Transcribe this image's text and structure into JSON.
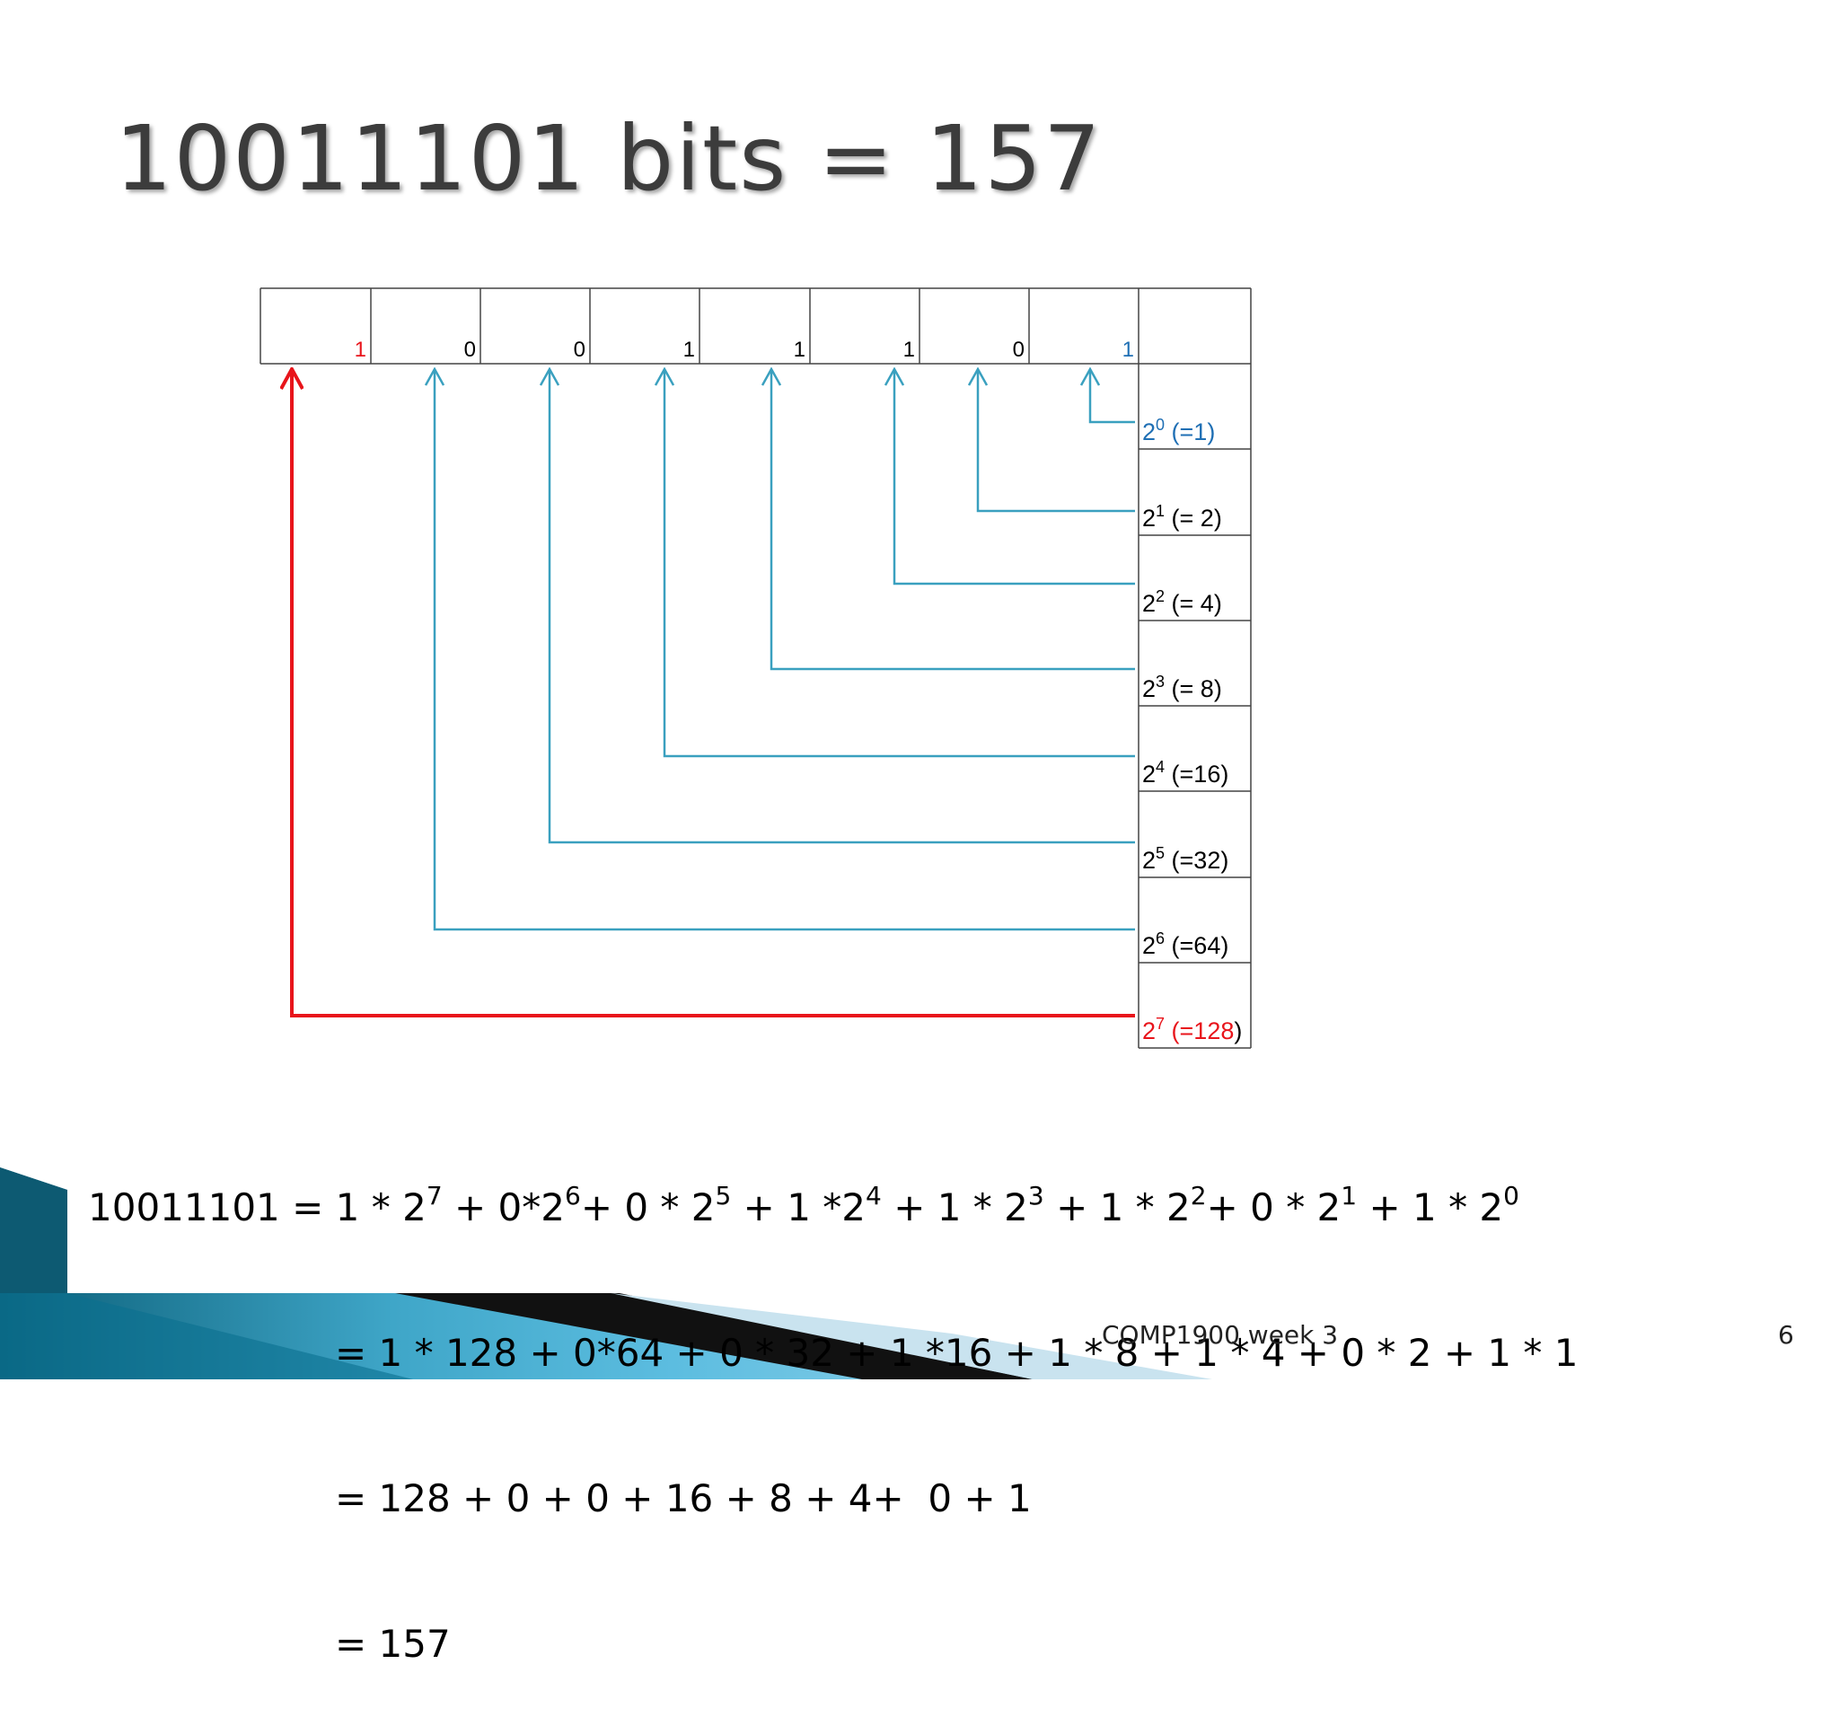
{
  "slide": {
    "title": "10011101 bits = 157",
    "footer": "COMP1900 week 3",
    "page_number": "6"
  },
  "bits": [
    {
      "value": "1",
      "color": "#e8141b"
    },
    {
      "value": "0",
      "color": "#000000"
    },
    {
      "value": "0",
      "color": "#000000"
    },
    {
      "value": "1",
      "color": "#000000"
    },
    {
      "value": "1",
      "color": "#000000"
    },
    {
      "value": "1",
      "color": "#000000"
    },
    {
      "value": "0",
      "color": "#000000"
    },
    {
      "value": "1",
      "color": "#1f6fb4"
    }
  ],
  "powers": [
    {
      "base": "2",
      "exp": "0",
      "text": " (=1)",
      "color": "#1f6fb4",
      "paren_color": "#1f6fb4"
    },
    {
      "base": "2",
      "exp": "1",
      "text": " (= 2)",
      "color": "#000000",
      "paren_color": "#000000"
    },
    {
      "base": "2",
      "exp": "2",
      "text": " (= 4)",
      "color": "#000000",
      "paren_color": "#000000"
    },
    {
      "base": "2",
      "exp": "3",
      "text": " (= 8)",
      "color": "#000000",
      "paren_color": "#000000"
    },
    {
      "base": "2",
      "exp": "4",
      "text": " (=16)",
      "color": "#000000",
      "paren_color": "#000000"
    },
    {
      "base": "2",
      "exp": "5",
      "text": " (=32)",
      "color": "#000000",
      "paren_color": "#000000"
    },
    {
      "base": "2",
      "exp": "6",
      "text": " (=64)",
      "color": "#000000",
      "paren_color": "#000000"
    },
    {
      "base": "2",
      "exp": "7",
      "text": " (=128",
      "close": ")",
      "color": "#e8141b",
      "paren_color": "#000000"
    }
  ],
  "colors": {
    "arrow": "#3aa0bf",
    "msb_arrow": "#e8141b",
    "grid": "#444444"
  },
  "equation": {
    "lhs": "10011101 ",
    "line1": [
      {
        "t": "= 1 * 2"
      },
      {
        "s": "7"
      },
      {
        "t": " + 0*2"
      },
      {
        "s": "6"
      },
      {
        "t": "+ 0 * 2"
      },
      {
        "s": "5"
      },
      {
        "t": " + 1 *2"
      },
      {
        "s": "4"
      },
      {
        "t": " + 1 * 2"
      },
      {
        "s": "3"
      },
      {
        "t": " + 1 * 2"
      },
      {
        "s": "2"
      },
      {
        "t": "+ 0 * 2"
      },
      {
        "s": "1"
      },
      {
        "t": " + 1 * 2"
      },
      {
        "s": "0"
      }
    ],
    "line2": "= 1 * 128 + 0*64 + 0 * 32 + 1 *16 + 1 * 8 + 1 * 4 + 0 * 2 + 1 * 1",
    "line3": "= 128 + 0 + 0 + 16 + 8 + 4+  0 + 1",
    "line4": "= 157"
  }
}
